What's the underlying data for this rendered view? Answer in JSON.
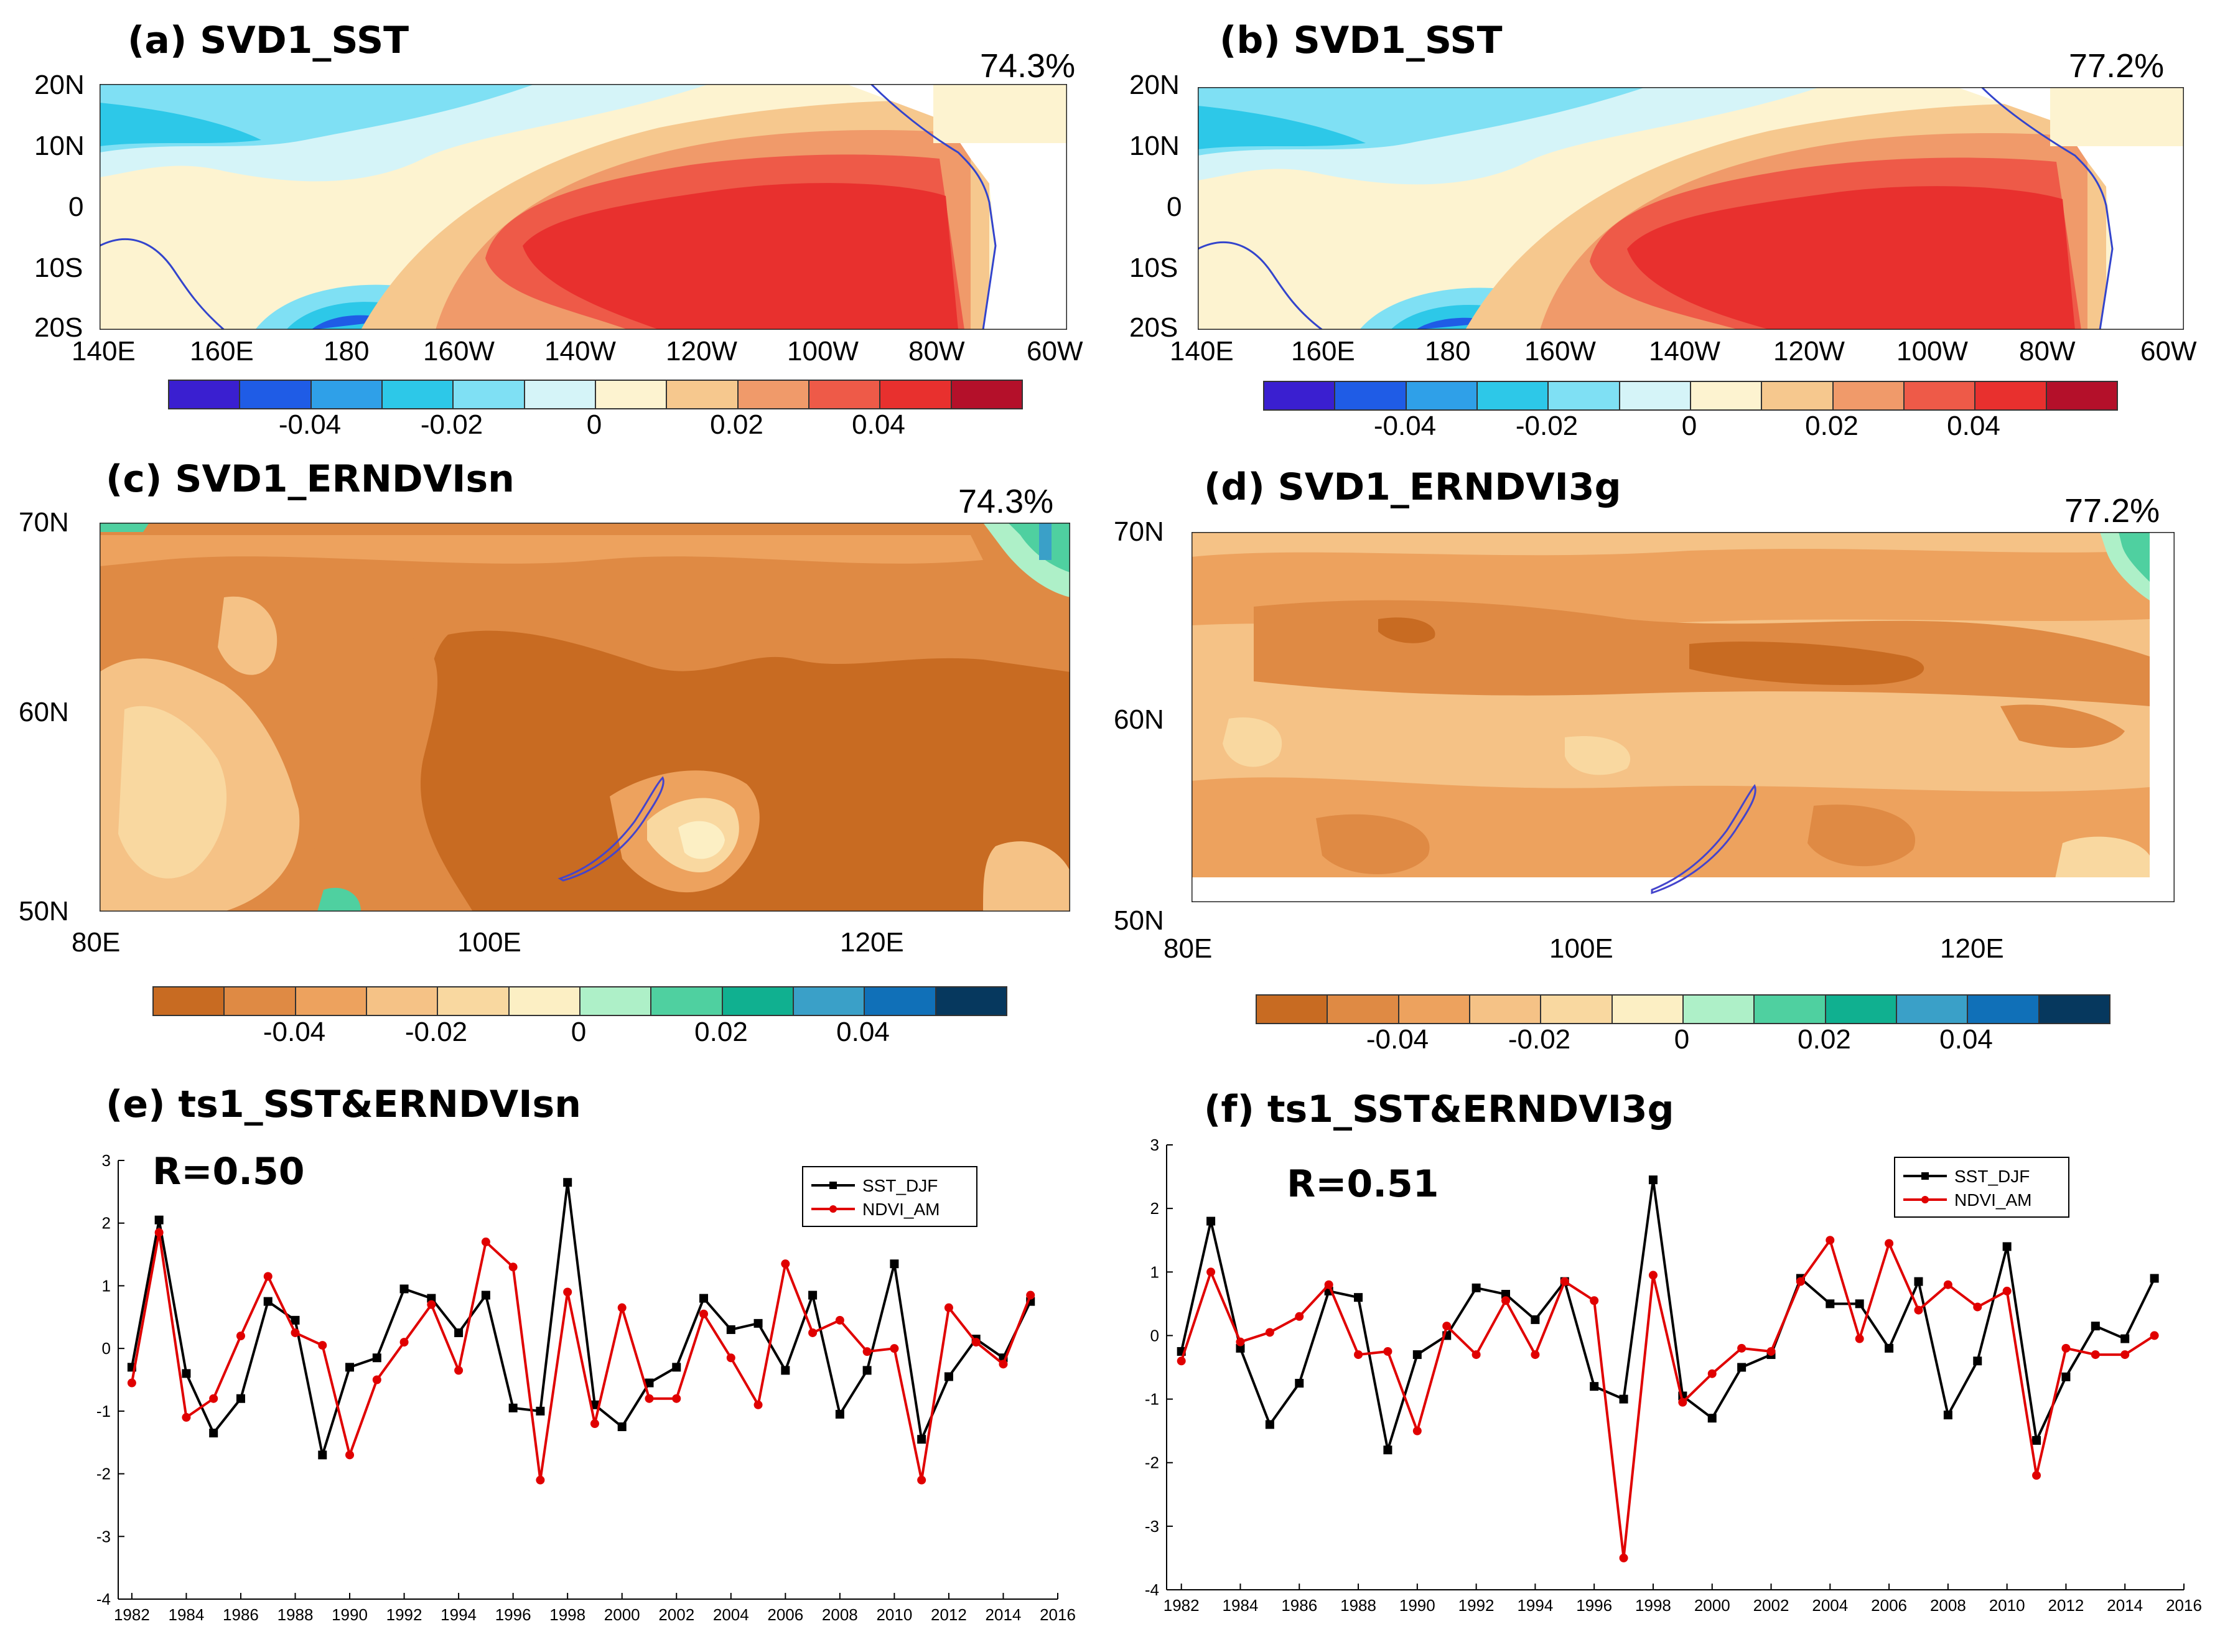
{
  "panels": {
    "a": {
      "title": "(a) SVD1_SST",
      "pct": "74.3%"
    },
    "b": {
      "title": "(b) SVD1_SST",
      "pct": "77.2%"
    },
    "c": {
      "title": "(c) SVD1_ERNDVIsn",
      "pct": "74.3%"
    },
    "d": {
      "title": "(d) SVD1_ERNDVI3g",
      "pct": "77.2%"
    },
    "e": {
      "title": "(e) ts1_SST&ERNDVIsn",
      "r": "R=0.50"
    },
    "f": {
      "title": "(f) ts1_SST&ERNDVI3g",
      "r": "R=0.51"
    }
  },
  "sst_axes": {
    "lat": [
      "20N",
      "10N",
      "0",
      "10S",
      "20S"
    ],
    "lon": [
      "140E",
      "160E",
      "180",
      "160W",
      "140W",
      "120W",
      "100W",
      "80W",
      "60W"
    ]
  },
  "ndvi_axes": {
    "lat": [
      "70N",
      "60N",
      "50N"
    ],
    "lon": [
      "80E",
      "100E",
      "120E"
    ]
  },
  "colorbar_labels": [
    "-0.04",
    "-0.02",
    "0",
    "0.02",
    "0.04"
  ],
  "colors": {
    "sst_scale": [
      "#3a1fd0",
      "#1f5ce6",
      "#2fa0e8",
      "#2dc8e8",
      "#7fe0f4",
      "#d5f4f8",
      "#fdf3d0",
      "#f6c88e",
      "#f09a6a",
      "#ee5a48",
      "#e8302e",
      "#b4102a"
    ],
    "ndvi_scale": [
      "#c86b22",
      "#df8a44",
      "#eda25e",
      "#f5c286",
      "#f9d8a0",
      "#fcefc4",
      "#aef0c8",
      "#4fd0a0",
      "#10b090",
      "#3aa0c8",
      "#1070b8",
      "#06385e"
    ],
    "sst_series": "#000000",
    "ndvi_series": "#e00000"
  },
  "chart_data": [
    {
      "id": "e",
      "type": "line",
      "x": [
        1982,
        1983,
        1984,
        1985,
        1986,
        1987,
        1988,
        1989,
        1990,
        1991,
        1992,
        1993,
        1994,
        1995,
        1996,
        1997,
        1998,
        1999,
        2000,
        2001,
        2002,
        2003,
        2004,
        2005,
        2006,
        2007,
        2008,
        2009,
        2010,
        2011,
        2012,
        2013,
        2014,
        2015
      ],
      "xticks": [
        "1982",
        "1984",
        "1986",
        "1988",
        "1990",
        "1992",
        "1994",
        "1996",
        "1998",
        "2000",
        "2002",
        "2004",
        "2006",
        "2008",
        "2010",
        "2012",
        "2014",
        "2016"
      ],
      "yticks": [
        "3",
        "2",
        "1",
        "0",
        "-1",
        "-2",
        "-3",
        "-4"
      ],
      "ylim": [
        -4,
        3
      ],
      "xlim": [
        1981.5,
        2016
      ],
      "legend": [
        "SST_DJF",
        "NDVI_AM"
      ],
      "series": [
        {
          "name": "SST_DJF",
          "values": [
            -0.3,
            2.05,
            -0.4,
            -1.35,
            -0.8,
            0.75,
            0.45,
            -1.7,
            -0.3,
            -0.15,
            0.95,
            0.8,
            0.25,
            0.85,
            -0.95,
            -1.0,
            2.65,
            -0.9,
            -1.25,
            -0.55,
            -0.3,
            0.8,
            0.3,
            0.4,
            -0.35,
            0.85,
            -1.05,
            -0.35,
            1.35,
            -1.45,
            -0.45,
            0.15,
            -0.15,
            0.75
          ]
        },
        {
          "name": "NDVI_AM",
          "values": [
            -0.55,
            1.85,
            -1.1,
            -0.8,
            0.2,
            1.15,
            0.25,
            0.05,
            -1.7,
            -0.5,
            0.1,
            0.7,
            -0.35,
            1.7,
            1.3,
            -2.1,
            0.9,
            -1.2,
            0.65,
            -0.8,
            -0.8,
            0.55,
            -0.15,
            -0.9,
            1.35,
            0.25,
            0.45,
            -0.05,
            0.0,
            -2.1,
            0.65,
            0.1,
            -0.25,
            0.85
          ]
        }
      ]
    },
    {
      "id": "f",
      "type": "line",
      "x": [
        1982,
        1983,
        1984,
        1985,
        1986,
        1987,
        1988,
        1989,
        1990,
        1991,
        1992,
        1993,
        1994,
        1995,
        1996,
        1997,
        1998,
        1999,
        2000,
        2001,
        2002,
        2003,
        2004,
        2005,
        2006,
        2007,
        2008,
        2009,
        2010,
        2011,
        2012,
        2013,
        2014,
        2015
      ],
      "xticks": [
        "1982",
        "1984",
        "1986",
        "1988",
        "1990",
        "1992",
        "1994",
        "1996",
        "1998",
        "2000",
        "2002",
        "2004",
        "2006",
        "2008",
        "2010",
        "2012",
        "2014",
        "2016"
      ],
      "yticks": [
        "3",
        "2",
        "1",
        "0",
        "-1",
        "-2",
        "-3",
        "-4"
      ],
      "ylim": [
        -4,
        3
      ],
      "xlim": [
        1981.5,
        2016
      ],
      "legend": [
        "SST_DJF",
        "NDVI_AM"
      ],
      "series": [
        {
          "name": "SST_DJF",
          "values": [
            -0.25,
            1.8,
            -0.2,
            -1.4,
            -0.75,
            0.7,
            0.6,
            -1.8,
            -0.3,
            0.0,
            0.75,
            0.65,
            0.25,
            0.85,
            -0.8,
            -1.0,
            2.45,
            -0.95,
            -1.3,
            -0.5,
            -0.3,
            0.9,
            0.5,
            0.5,
            -0.2,
            0.85,
            -1.25,
            -0.4,
            1.4,
            -1.65,
            -0.65,
            0.15,
            -0.05,
            0.9
          ]
        },
        {
          "name": "NDVI_AM",
          "values": [
            -0.4,
            1.0,
            -0.1,
            0.05,
            0.3,
            0.8,
            -0.3,
            -0.25,
            -1.5,
            0.15,
            -0.3,
            0.55,
            -0.3,
            0.85,
            0.55,
            -3.5,
            0.95,
            -1.05,
            -0.6,
            -0.2,
            -0.25,
            0.85,
            1.5,
            -0.05,
            1.45,
            0.4,
            0.8,
            0.45,
            0.7,
            -2.2,
            -0.2,
            -0.3,
            -0.3,
            0.0
          ]
        }
      ]
    }
  ]
}
